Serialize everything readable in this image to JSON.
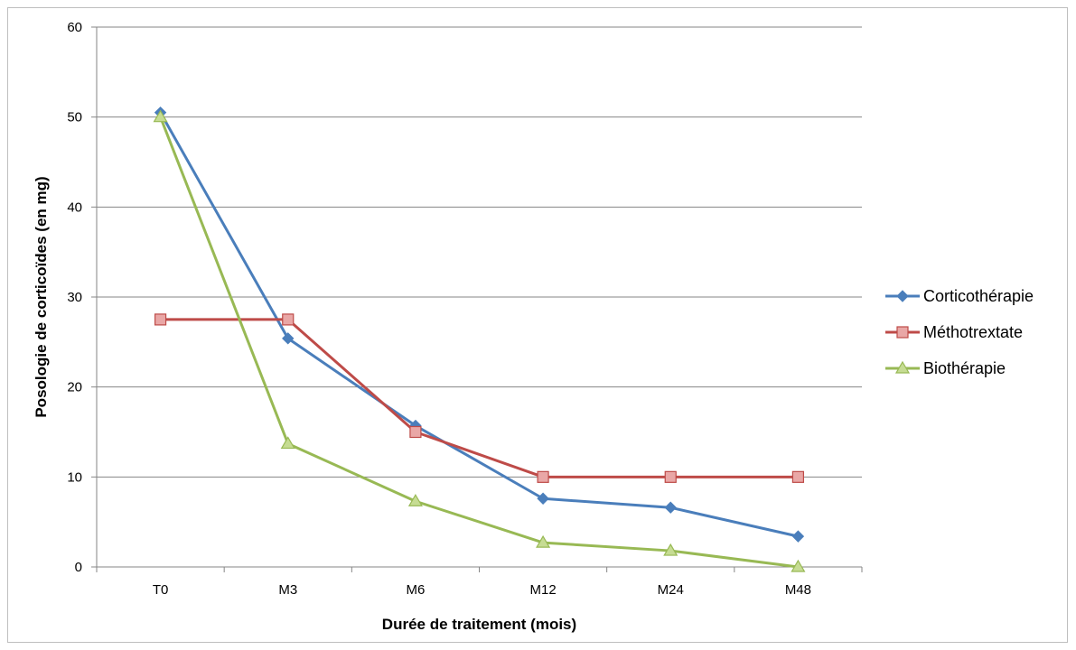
{
  "chart_data": {
    "type": "line",
    "title": "",
    "xlabel": "Durée de traitement (mois)",
    "ylabel": "Posologie de corticoïdes (en mg)",
    "categories": [
      "T0",
      "M3",
      "M6",
      "M12",
      "M24",
      "M48"
    ],
    "ylim": [
      0,
      60
    ],
    "yticks": [
      0,
      10,
      20,
      30,
      40,
      50,
      60
    ],
    "grid": "horizontal",
    "legend": "right",
    "series": [
      {
        "name": "Corticothérapie",
        "color": "#4a7ebb",
        "marker": "diamond",
        "values": [
          50.5,
          25.4,
          15.7,
          7.6,
          6.6,
          3.4
        ]
      },
      {
        "name": "Méthotrextate",
        "color": "#be4b48",
        "marker": "square",
        "values": [
          27.5,
          27.5,
          15.0,
          10.0,
          10.0,
          10.0
        ]
      },
      {
        "name": "Biothérapie",
        "color": "#98b954",
        "marker": "triangle",
        "values": [
          50.0,
          13.7,
          7.3,
          2.7,
          1.8,
          0.0
        ]
      }
    ]
  }
}
